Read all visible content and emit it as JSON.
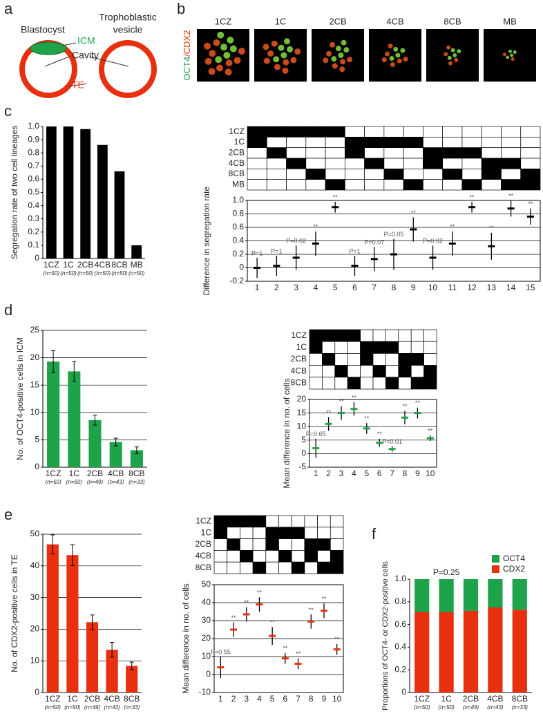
{
  "diagram": {
    "panel": "a",
    "left_title": "Blastocyst",
    "right_title": [
      "Trophoblastic",
      "vesicle"
    ],
    "icm": "ICM",
    "cavity": "Cavity",
    "te": "TE"
  },
  "images": {
    "panel": "b",
    "labels": [
      "1CZ",
      "1C",
      "2CB",
      "4CB",
      "8CB",
      "MB"
    ],
    "stain_label": [
      "OCT4",
      "/CDX2"
    ]
  },
  "chart_data": [
    {
      "type": "bar",
      "panel": "c",
      "ylabel": "Segregation rate of two cell lineages",
      "color": "#000000",
      "grid": false,
      "categories": [
        "1CZ",
        "1C",
        "2CB",
        "4CB",
        "8CB",
        "MB"
      ],
      "category_notes": [
        "(n=50)",
        "(n=50)",
        "(n=50)",
        "(n=50)",
        "(n=50)",
        "(n=50)"
      ],
      "values": [
        1.0,
        1.0,
        0.98,
        0.86,
        0.66,
        0.1
      ],
      "ylim": [
        0,
        1
      ],
      "yticks": [
        0,
        0.1,
        0.2,
        0.3,
        0.4,
        0.5,
        0.6,
        0.7,
        0.8,
        0.9,
        {
          "value": 1,
          "label": "1.0"
        }
      ]
    },
    {
      "type": "errorbar",
      "ylabel": "Difference in segregation rate",
      "color": "#000000",
      "grid": true,
      "matrix": {
        "rows": [
          "1CZ",
          "1C",
          "2CB",
          "4CB",
          "8CB",
          "MB"
        ],
        "cells": [
          [
            1,
            1,
            1,
            1,
            1,
            0,
            0,
            0,
            0,
            0,
            0,
            0,
            0,
            0,
            0
          ],
          [
            1,
            0,
            0,
            0,
            0,
            1,
            1,
            1,
            1,
            0,
            0,
            0,
            0,
            0,
            0
          ],
          [
            0,
            1,
            0,
            0,
            0,
            1,
            0,
            0,
            0,
            1,
            1,
            1,
            0,
            0,
            0
          ],
          [
            0,
            0,
            1,
            0,
            0,
            0,
            1,
            0,
            0,
            1,
            0,
            0,
            1,
            1,
            0
          ],
          [
            0,
            0,
            0,
            1,
            0,
            0,
            0,
            1,
            0,
            0,
            1,
            0,
            1,
            0,
            1
          ],
          [
            0,
            0,
            0,
            0,
            1,
            0,
            0,
            0,
            1,
            0,
            0,
            1,
            0,
            1,
            1
          ]
        ]
      },
      "categories": [
        "1",
        "2",
        "3",
        "4",
        "5",
        "6",
        "7",
        "8",
        "9",
        "10",
        "11",
        "12",
        "13",
        "14",
        "15"
      ],
      "values": [
        0.0,
        0.03,
        0.15,
        0.36,
        0.9,
        0.03,
        0.13,
        0.2,
        0.57,
        0.15,
        0.36,
        0.9,
        0.32,
        0.88,
        0.76
      ],
      "errors": [
        0.15,
        0.15,
        0.18,
        0.18,
        0.08,
        0.15,
        0.18,
        0.23,
        0.18,
        0.18,
        0.18,
        0.08,
        0.2,
        0.12,
        0.12
      ],
      "annotations": [
        "P=1",
        "P=1",
        "P=0.02",
        "**",
        "**",
        "P=1",
        "P=0.07",
        "P=0.05",
        "**",
        "P=0.02",
        "**",
        "**",
        "**",
        "**",
        "**"
      ],
      "ylim": [
        -0.2,
        1
      ],
      "yticks": [
        -0.2,
        0,
        0.2,
        0.4,
        0.6,
        0.8,
        {
          "value": 1,
          "label": "1.0"
        }
      ]
    },
    {
      "type": "bar",
      "panel": "d",
      "ylabel": "No. of OCT4-positive cells in ICM",
      "color": "#1fa34a",
      "grid": true,
      "categories": [
        "1CZ",
        "1C",
        "2CB",
        "4CB",
        "8CB"
      ],
      "category_notes": [
        "(n=50)",
        "(n=50)",
        "(n=49)",
        "(n=43)",
        "(n=33)"
      ],
      "values": [
        19.3,
        17.5,
        8.6,
        4.6,
        3.1
      ],
      "errors": [
        2.0,
        1.8,
        0.9,
        0.7,
        0.6
      ],
      "ylim": [
        0,
        25
      ],
      "yticks": [
        0,
        5,
        10,
        15,
        20,
        25
      ]
    },
    {
      "type": "errorbar",
      "ylabel": "Mean difference in no. of cells",
      "color": "#1fa34a",
      "grid": true,
      "matrix": {
        "rows": [
          "1CZ",
          "1C",
          "2CB",
          "4CB",
          "8CB"
        ],
        "cells": [
          [
            1,
            1,
            1,
            1,
            0,
            0,
            0,
            0,
            0,
            0
          ],
          [
            1,
            0,
            0,
            0,
            1,
            1,
            1,
            0,
            0,
            0
          ],
          [
            0,
            1,
            0,
            0,
            1,
            0,
            0,
            1,
            1,
            0
          ],
          [
            0,
            0,
            1,
            0,
            0,
            1,
            0,
            1,
            0,
            1
          ],
          [
            0,
            0,
            0,
            1,
            0,
            0,
            1,
            0,
            1,
            1
          ]
        ]
      },
      "categories": [
        "1",
        "2",
        "3",
        "4",
        "5",
        "6",
        "7",
        "8",
        "9",
        "10"
      ],
      "values": [
        2,
        11,
        15,
        16.5,
        9.3,
        4,
        1.7,
        13.3,
        15,
        5.7
      ],
      "errors": [
        3.5,
        2.5,
        2.5,
        2.5,
        2,
        1.5,
        1,
        2.5,
        2,
        1
      ],
      "annotations": [
        "P=0.65",
        "**",
        "**",
        "**",
        "**",
        "**",
        "P=0.01",
        "**",
        "**",
        "**"
      ],
      "ylim": [
        -5,
        20
      ],
      "yticks": [
        -5,
        0,
        5,
        10,
        15,
        20
      ]
    },
    {
      "type": "bar",
      "panel": "e",
      "ylabel": "No. of CDX2-positive cells in TE",
      "color": "#e8300f",
      "grid": true,
      "categories": [
        "1CZ",
        "1C",
        "2CB",
        "4CB",
        "8CB"
      ],
      "category_notes": [
        "(n=50)",
        "(n=50)",
        "(n=49)",
        "(n=43)",
        "(n=33)"
      ],
      "values": [
        46.8,
        43.4,
        22.2,
        13.5,
        8.4
      ],
      "errors": [
        3,
        3.3,
        2.3,
        2.3,
        1.2
      ],
      "ylim": [
        0,
        50
      ],
      "yticks": [
        0,
        10,
        20,
        30,
        40,
        50
      ]
    },
    {
      "type": "errorbar",
      "ylabel": "Mean difference in no. of cells",
      "color": "#e8300f",
      "grid": true,
      "matrix": {
        "rows": [
          "1CZ",
          "1C",
          "2CB",
          "4CB",
          "8CB"
        ],
        "cells": [
          [
            1,
            1,
            1,
            1,
            0,
            0,
            0,
            0,
            0,
            0
          ],
          [
            1,
            0,
            0,
            0,
            1,
            1,
            1,
            0,
            0,
            0
          ],
          [
            0,
            1,
            0,
            0,
            1,
            0,
            0,
            1,
            1,
            0
          ],
          [
            0,
            0,
            1,
            0,
            0,
            1,
            0,
            1,
            0,
            1
          ],
          [
            0,
            0,
            0,
            1,
            0,
            0,
            1,
            0,
            1,
            1
          ]
        ]
      },
      "categories": [
        "1",
        "2",
        "3",
        "4",
        "5",
        "6",
        "7",
        "8",
        "9",
        "10"
      ],
      "values": [
        4,
        25,
        33.5,
        39,
        21.5,
        9,
        6,
        29.5,
        35.5,
        14
      ],
      "errors": [
        6,
        4,
        4,
        4,
        5,
        3,
        3,
        4,
        4,
        3
      ],
      "annotations": [
        "P=0.55",
        "**",
        "**",
        "**",
        "**",
        "**",
        "**",
        "**",
        "**",
        "**"
      ],
      "ylim": [
        -10,
        50
      ],
      "yticks": [
        -10,
        0,
        10,
        20,
        30,
        40,
        50
      ]
    },
    {
      "type": "stacked_bar",
      "panel": "f",
      "ylabel": "Proportions of OCT4- or CDX2-positive cells",
      "grid": false,
      "legend": "top-right",
      "categories": [
        "1CZ",
        "1C",
        "2CB",
        "4CB",
        "8CB"
      ],
      "category_notes": [
        "(n=50)",
        "(n=50)",
        "(n=49)",
        "(n=43)",
        "(n=33)"
      ],
      "series": [
        {
          "name": "OCT4",
          "color": "#1fa34a",
          "values": [
            0.29,
            0.29,
            0.28,
            0.25,
            0.27
          ]
        },
        {
          "name": "CDX2",
          "color": "#e8300f",
          "values": [
            0.71,
            0.71,
            0.72,
            0.75,
            0.73
          ]
        }
      ],
      "annotations": [
        null,
        "P=0.25",
        null,
        null,
        null
      ],
      "ylim": [
        0,
        1
      ],
      "yticks": [
        0,
        0.2,
        0.4,
        0.6,
        0.8,
        {
          "value": 1,
          "label": "1.0"
        }
      ]
    }
  ]
}
